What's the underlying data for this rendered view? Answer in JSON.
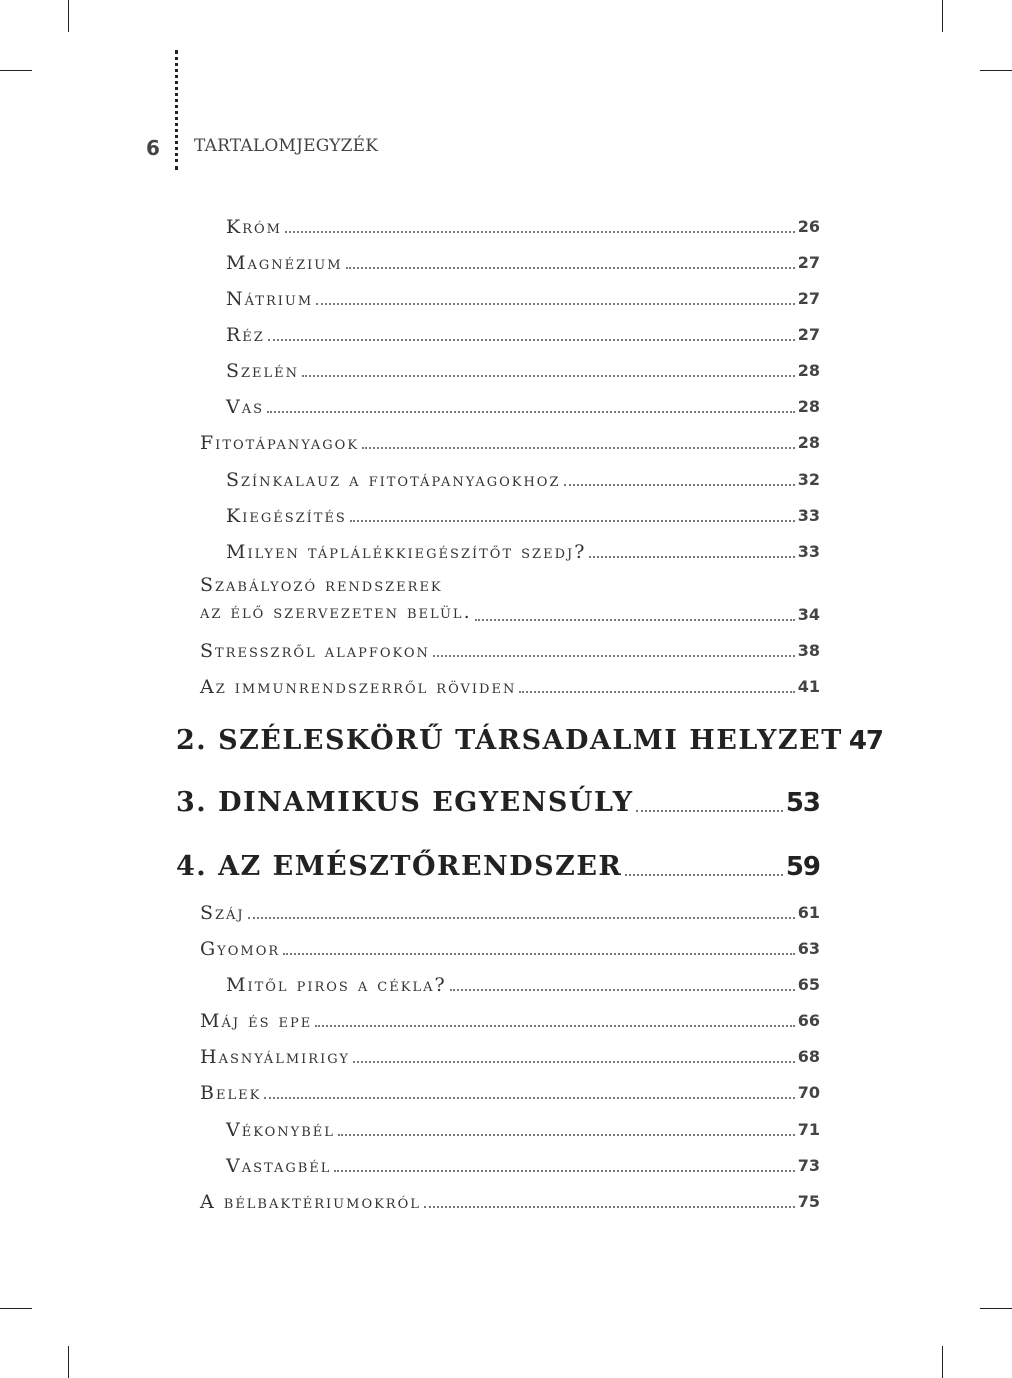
{
  "page": {
    "number": "6",
    "running_head": "TARTALOMJEGYZÉK"
  },
  "toc": [
    {
      "level": 2,
      "title": "Króm",
      "page": "26"
    },
    {
      "level": 2,
      "title": "Magnézium",
      "page": "27"
    },
    {
      "level": 2,
      "title": "Nátrium",
      "page": "27"
    },
    {
      "level": 2,
      "title": "Réz",
      "page": "27"
    },
    {
      "level": 2,
      "title": "Szelén",
      "page": "28"
    },
    {
      "level": 2,
      "title": "Vas",
      "page": "28"
    },
    {
      "level": 1,
      "title": "Fitotápanyagok",
      "page": "28"
    },
    {
      "level": 2,
      "title": "Színkalauz a fitotápanyagokhoz",
      "page": "32"
    },
    {
      "level": 2,
      "title": "Kiegészítés",
      "page": "33"
    },
    {
      "level": 2,
      "title": "Milyen táplálékkiegészítőt szedj?",
      "page": "33"
    },
    {
      "level": 1,
      "title": "Szabályozó rendszerek",
      "title2": "az élő szervezeten belül.",
      "page": "34"
    },
    {
      "level": 1,
      "title": "Stresszről alapfokon",
      "page": "38"
    },
    {
      "level": 1,
      "title": "Az immunrendszerről röviden",
      "page": "41"
    },
    {
      "level": 0,
      "title": "2. SZÉLESKÖRŰ TÁRSADALMI HELYZET",
      "page": "47"
    },
    {
      "level": 0,
      "title": "3. DINAMIKUS EGYENSÚLY",
      "page": "53"
    },
    {
      "level": 0,
      "title": "4. AZ EMÉSZTŐRENDSZER",
      "page": "59"
    },
    {
      "level": 1,
      "title": "Száj",
      "page": "61"
    },
    {
      "level": 1,
      "title": "Gyomor",
      "page": "63"
    },
    {
      "level": 2,
      "title": "Mitől piros a cékla?",
      "page": "65"
    },
    {
      "level": 1,
      "title": "Máj és epe",
      "page": "66"
    },
    {
      "level": 1,
      "title": "Hasnyálmirigy",
      "page": "68"
    },
    {
      "level": 1,
      "title": "Belek",
      "page": "70"
    },
    {
      "level": 2,
      "title": "Vékonybél",
      "page": "71"
    },
    {
      "level": 2,
      "title": "Vastagbél",
      "page": "73"
    },
    {
      "level": 1,
      "title": "A bélbaktériumokról",
      "page": "75"
    }
  ]
}
